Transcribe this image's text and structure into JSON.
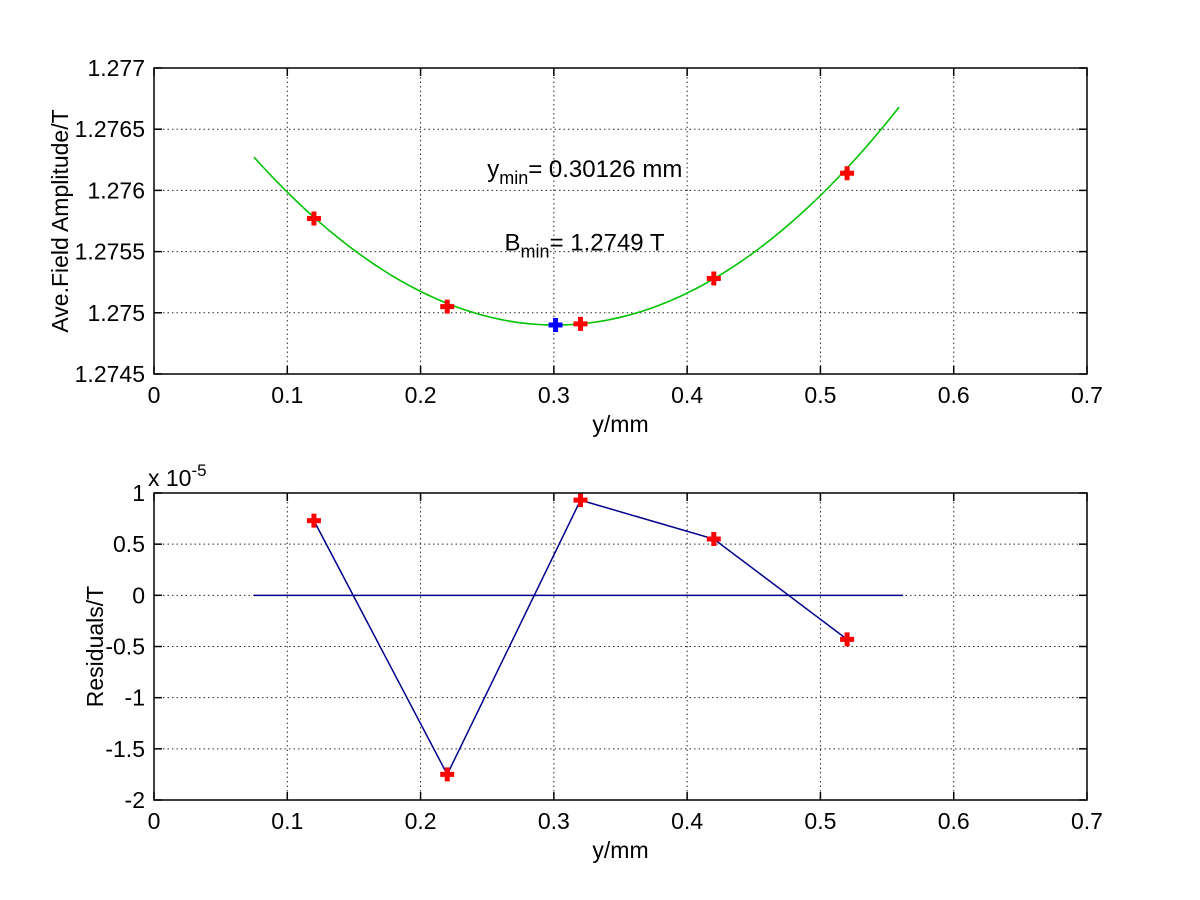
{
  "figure": {
    "background": "#ffffff",
    "description": "Quadratic fit of average field amplitude versus y position with residuals subplot"
  },
  "colors": {
    "axis": "#000000",
    "grid": "#2b2b2b",
    "fit_curve": "#00c300",
    "data_marker": "#ff0000",
    "minimum_marker": "#0000ff",
    "residual_line": "#00008c",
    "zero_line": "#00008c",
    "text": "#000000"
  },
  "chart_data": [
    {
      "type": "scatter",
      "title": "",
      "xlabel": "y/mm",
      "ylabel": "Ave.Field Amplitude/T",
      "xlim": [
        0,
        0.7
      ],
      "ylim": [
        1.2745,
        1.277
      ],
      "xticks": [
        0,
        0.1,
        0.2,
        0.3,
        0.4,
        0.5,
        0.6,
        0.7
      ],
      "xtick_labels": [
        "0",
        "0.1",
        "0.2",
        "0.3",
        "0.4",
        "0.5",
        "0.6",
        "0.7"
      ],
      "yticks": [
        1.2745,
        1.275,
        1.2755,
        1.276,
        1.2765,
        1.277
      ],
      "ytick_labels": [
        "1.2745",
        "1.275",
        "1.2755",
        "1.276",
        "1.2765",
        "1.277"
      ],
      "grid": true,
      "legend": "none",
      "series": [
        {
          "name": "quadratic-fit-curve",
          "kind": "fit-parabola",
          "color": "#00c300",
          "b_min_T": 1.2749,
          "y_min_mm": 0.30126,
          "curvature": 0.0268,
          "x_range": [
            0.075,
            0.562
          ]
        },
        {
          "name": "measured-points",
          "kind": "scatter",
          "marker": "plus",
          "color": "#ff0000",
          "x": [
            0.12,
            0.22,
            0.32,
            0.42,
            0.52
          ],
          "y": [
            1.27577,
            1.27505,
            1.27491,
            1.27528,
            1.27614
          ]
        },
        {
          "name": "fitted-minimum-point",
          "kind": "scatter",
          "marker": "plus",
          "color": "#0000ff",
          "x": [
            0.30126
          ],
          "y": [
            1.2749
          ]
        }
      ],
      "annotations": [
        {
          "base": "y",
          "sub": "min",
          "rest": "= 0.30126 mm",
          "x": 0.25,
          "y": 1.27611
        },
        {
          "base": "B",
          "sub": "min",
          "rest": "= 1.2749 T",
          "x": 0.263,
          "y": 1.27551
        }
      ]
    },
    {
      "type": "line",
      "title": "",
      "xlabel": "y/mm",
      "ylabel": "Residuals/T",
      "y_scale_label": {
        "base": "x 10",
        "exp": "-5"
      },
      "y_values_unit": "1e-5 T",
      "xlim": [
        0,
        0.7
      ],
      "ylim": [
        -2,
        1
      ],
      "xticks": [
        0,
        0.1,
        0.2,
        0.3,
        0.4,
        0.5,
        0.6,
        0.7
      ],
      "xtick_labels": [
        "0",
        "0.1",
        "0.2",
        "0.3",
        "0.4",
        "0.5",
        "0.6",
        "0.7"
      ],
      "yticks": [
        1,
        0.5,
        0,
        -0.5,
        -1,
        -1.5,
        -2
      ],
      "ytick_labels": [
        "1",
        "0.5",
        "0",
        "-0.5",
        "-1",
        "-1.5",
        "-2"
      ],
      "grid": true,
      "legend": "none",
      "series": [
        {
          "name": "zero-reference-line",
          "kind": "line",
          "color": "#00008c",
          "x": [
            0.075,
            0.562
          ],
          "y": [
            0,
            0
          ]
        },
        {
          "name": "residuals",
          "kind": "line+scatter",
          "line_color": "#00008c",
          "marker": "plus",
          "marker_color": "#ff0000",
          "x": [
            0.12,
            0.22,
            0.32,
            0.42,
            0.52
          ],
          "y": [
            0.73,
            -1.75,
            0.93,
            0.55,
            -0.43
          ]
        }
      ],
      "annotations": []
    }
  ]
}
